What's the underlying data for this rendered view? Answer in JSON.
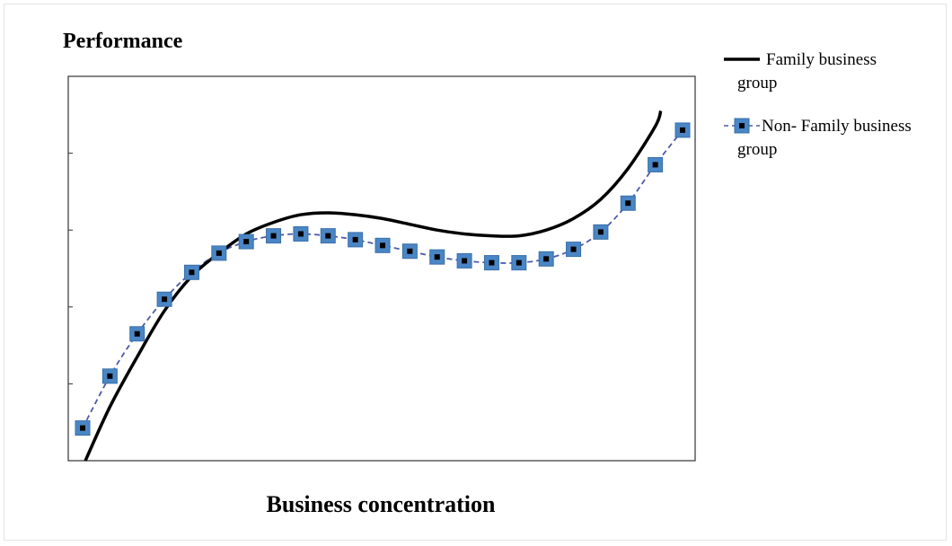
{
  "chart_data": {
    "type": "line",
    "title": "Performance",
    "xlabel": "Business concentration",
    "ylabel": "Performance",
    "xlim": [
      0,
      22
    ],
    "ylim": [
      0,
      100
    ],
    "grid": false,
    "legend_position": "top-right, outside plot",
    "colors": {
      "family": "#000000",
      "non_family_line": "#4e5aa8",
      "marker_fill": "#4a86c5",
      "marker_center": "#000000"
    },
    "series": [
      {
        "name": "Family business group",
        "legend_lines": [
          "Family business",
          "group"
        ],
        "style": "solid",
        "x": [
          0.1,
          1,
          2,
          3,
          4,
          5,
          6,
          7,
          8,
          9,
          10,
          11,
          12,
          13,
          14,
          15,
          16,
          17,
          18,
          19,
          20,
          21,
          21.2
        ],
        "y": [
          0,
          14,
          27,
          39,
          48,
          54,
          59,
          62,
          64,
          64.5,
          64,
          63,
          61.5,
          60,
          59,
          58.5,
          58.5,
          60,
          63,
          68,
          76,
          87,
          91
        ]
      },
      {
        "name": "Non- Family business group",
        "legend_lines": [
          "Non- Family business",
          "group"
        ],
        "style": "dashed with square markers",
        "x": [
          0,
          1,
          2,
          3,
          4,
          5,
          6,
          7,
          8,
          9,
          10,
          11,
          12,
          13,
          14,
          15,
          16,
          17,
          18,
          19,
          20,
          21,
          22
        ],
        "y": [
          8.5,
          22,
          33,
          42,
          49,
          54,
          57,
          58.5,
          59,
          58.5,
          57.5,
          56,
          54.5,
          53,
          52,
          51.5,
          51.5,
          52.5,
          55,
          59.5,
          67,
          77,
          86
        ]
      }
    ]
  }
}
